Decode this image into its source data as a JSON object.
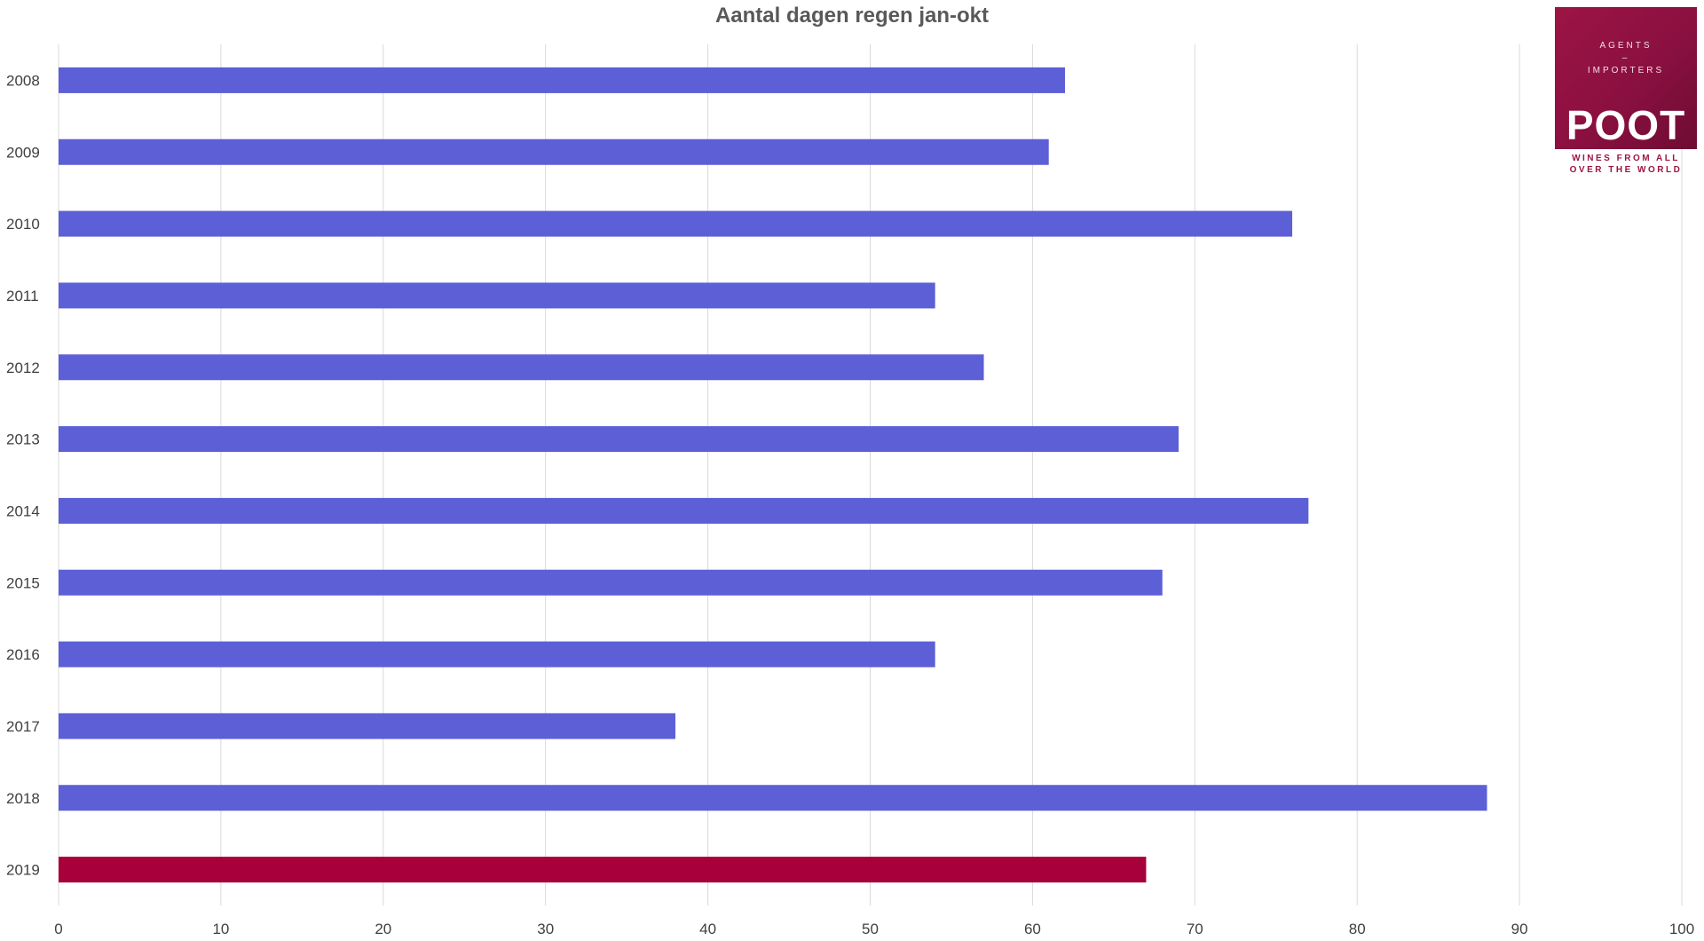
{
  "chart_data": {
    "type": "bar",
    "orientation": "horizontal",
    "title": "Aantal dagen regen jan-okt",
    "xlabel": "",
    "ylabel": "",
    "categories": [
      "2008",
      "2009",
      "2010",
      "2011",
      "2012",
      "2013",
      "2014",
      "2015",
      "2016",
      "2017",
      "2018",
      "2019"
    ],
    "values": [
      62,
      61,
      76,
      54,
      57,
      69,
      77,
      68,
      54,
      38,
      88,
      67
    ],
    "xlim": [
      0,
      100
    ],
    "x_ticks": [
      "0",
      "10",
      "20",
      "30",
      "40",
      "50",
      "60",
      "70",
      "80",
      "90",
      "100"
    ],
    "grid": "vertical",
    "colors": {
      "default_bar": "#5c5fd6",
      "highlight_bar": "#a8003a",
      "highlight_category": "2019",
      "gridline": "#d9d9d9",
      "tick_text": "#404040",
      "title_text": "#595959"
    }
  },
  "logo": {
    "line1": "AGENTS",
    "line2": "–",
    "line3": "IMPORTERS",
    "brand": "POOT",
    "tagline1": "WINES FROM ALL",
    "tagline2": "OVER THE WORLD",
    "color": "#9c1444"
  }
}
